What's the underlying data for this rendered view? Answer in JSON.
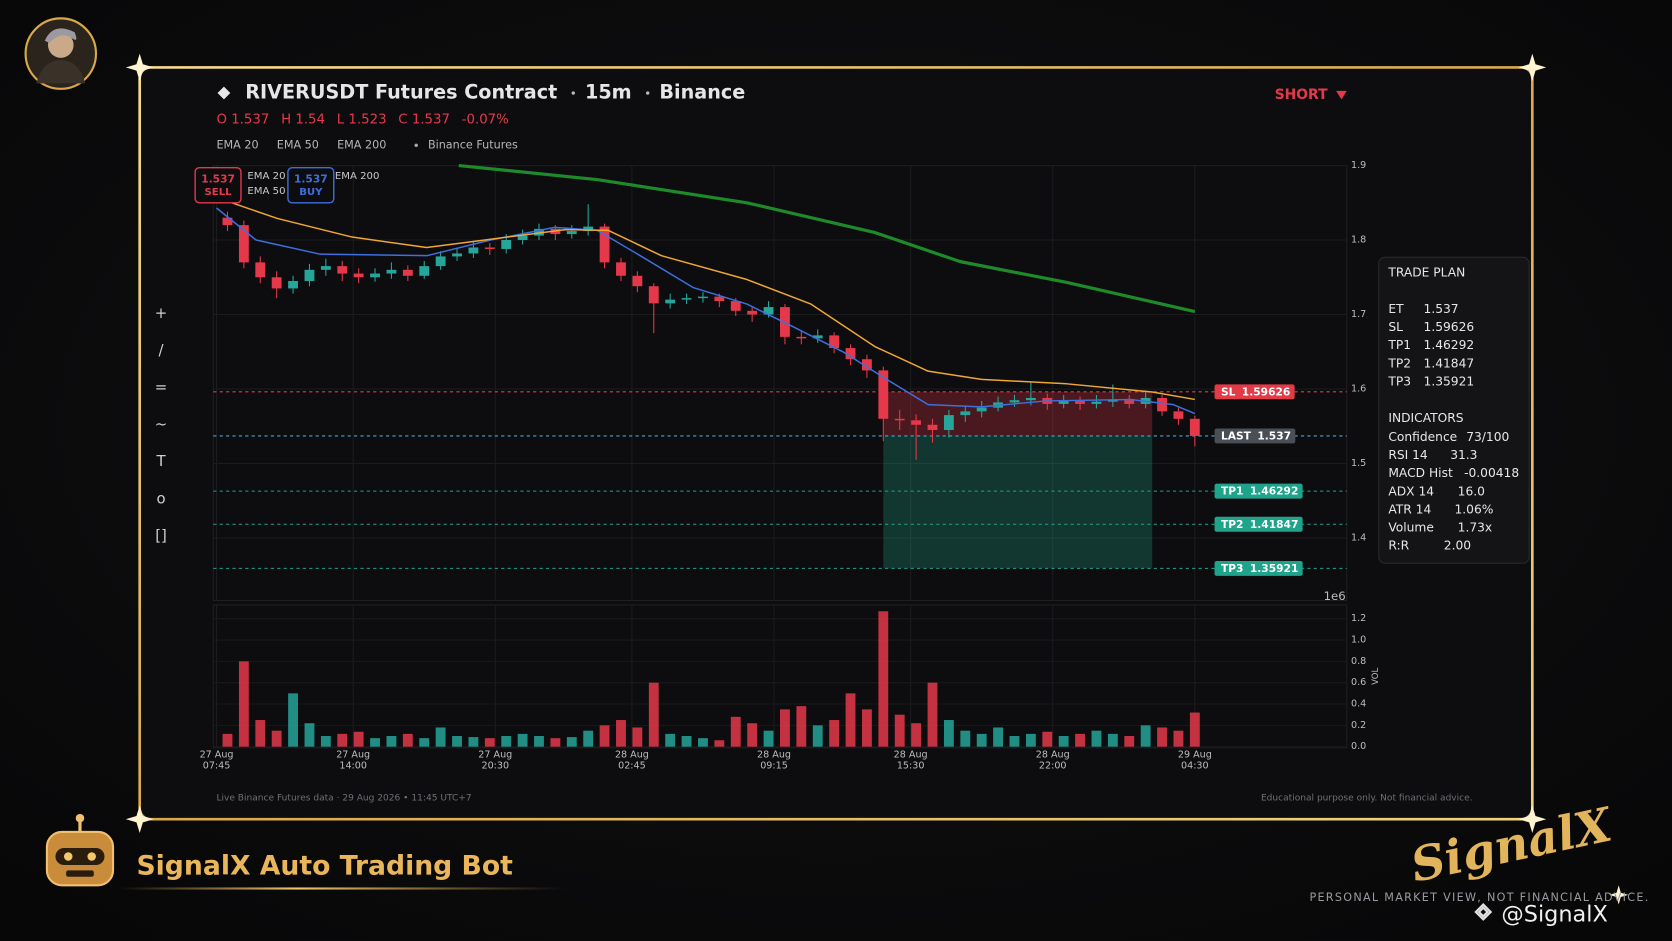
{
  "chart_data": {
    "type": "candlestick",
    "title": "RIVERUSDT Futures Contract",
    "interval": "15m",
    "exchange": "Binance",
    "side": "SHORT",
    "ohlc": [
      {
        "name": "O",
        "value": 1.537
      },
      {
        "name": "H",
        "value": 1.54
      },
      {
        "name": "L",
        "value": 1.523
      },
      {
        "name": "C",
        "value": 1.537
      }
    ],
    "change": {
      "value": -0.07,
      "label": "-0.07%"
    },
    "source": "Binance Futures",
    "buttons": [
      {
        "price": "1.537",
        "label": "SELL",
        "color": "#e5394b"
      },
      {
        "price": "1.537",
        "label": "BUY",
        "color": "#3d6fe0"
      }
    ],
    "toolbar": [
      "+",
      "/",
      "=",
      "~",
      "T",
      "o",
      "[]"
    ],
    "offset_label": "1e6",
    "up_color": "#26a69a",
    "down_color": "#e5394b",
    "grid": true,
    "xlim": [
      -0.15,
      51.7
    ],
    "xticks": [
      {
        "value": 0,
        "label": [
          "27 Aug",
          "07:45"
        ]
      },
      {
        "value": 6.25,
        "label": [
          "27 Aug",
          "14:00"
        ]
      },
      {
        "value": 12.75,
        "label": [
          "27 Aug",
          "20:30"
        ]
      },
      {
        "value": 19,
        "label": [
          "28 Aug",
          "02:45"
        ]
      },
      {
        "value": 25.5,
        "label": [
          "28 Aug",
          "09:15"
        ]
      },
      {
        "value": 31.75,
        "label": [
          "28 Aug",
          "15:30"
        ]
      },
      {
        "value": 38.25,
        "label": [
          "28 Aug",
          "22:00"
        ]
      },
      {
        "value": 44.75,
        "label": [
          "29 Aug",
          "04:30"
        ]
      }
    ],
    "ylim": [
      1.316,
      1.9
    ],
    "yticks": [
      1.4,
      1.5,
      1.6,
      1.7,
      1.8,
      1.9
    ],
    "x": [
      0.5,
      1.25,
      2,
      2.75,
      3.5,
      4.25,
      5,
      5.75,
      6.5,
      7.25,
      8,
      8.75,
      9.5,
      10.25,
      11,
      11.75,
      12.5,
      13.25,
      14,
      14.75,
      15.5,
      16.25,
      17,
      17.75,
      18.5,
      19.25,
      20,
      20.75,
      21.5,
      22.25,
      23,
      23.75,
      24.5,
      25.25,
      26,
      26.75,
      27.5,
      28.25,
      29,
      29.75,
      30.5,
      31.25,
      32,
      32.75,
      33.5,
      34.25,
      35,
      35.75,
      36.5,
      37.25,
      38,
      38.75,
      39.5,
      40.25,
      41,
      41.75,
      42.5,
      43.25,
      44,
      44.75
    ],
    "candles": [
      [
        1.83,
        1.838,
        1.812,
        1.82
      ],
      [
        1.82,
        1.826,
        1.762,
        1.77
      ],
      [
        1.77,
        1.778,
        1.742,
        1.75
      ],
      [
        1.75,
        1.758,
        1.722,
        1.735
      ],
      [
        1.735,
        1.752,
        1.728,
        1.745
      ],
      [
        1.745,
        1.768,
        1.738,
        1.76
      ],
      [
        1.76,
        1.775,
        1.752,
        1.765
      ],
      [
        1.765,
        1.772,
        1.745,
        1.755
      ],
      [
        1.755,
        1.762,
        1.742,
        1.75
      ],
      [
        1.75,
        1.762,
        1.744,
        1.755
      ],
      [
        1.755,
        1.77,
        1.748,
        1.76
      ],
      [
        1.76,
        1.766,
        1.745,
        1.752
      ],
      [
        1.752,
        1.772,
        1.748,
        1.765
      ],
      [
        1.765,
        1.785,
        1.76,
        1.778
      ],
      [
        1.778,
        1.79,
        1.772,
        1.782
      ],
      [
        1.782,
        1.798,
        1.776,
        1.79
      ],
      [
        1.79,
        1.796,
        1.78,
        1.788
      ],
      [
        1.788,
        1.808,
        1.782,
        1.8
      ],
      [
        1.8,
        1.814,
        1.794,
        1.806
      ],
      [
        1.806,
        1.822,
        1.8,
        1.815
      ],
      [
        1.815,
        1.82,
        1.8,
        1.808
      ],
      [
        1.808,
        1.82,
        1.802,
        1.812
      ],
      [
        1.812,
        1.848,
        1.806,
        1.818
      ],
      [
        1.818,
        1.822,
        1.762,
        1.77
      ],
      [
        1.77,
        1.776,
        1.745,
        1.752
      ],
      [
        1.752,
        1.758,
        1.73,
        1.738
      ],
      [
        1.738,
        1.742,
        1.675,
        1.715
      ],
      [
        1.715,
        1.728,
        1.708,
        1.72
      ],
      [
        1.72,
        1.728,
        1.714,
        1.722
      ],
      [
        1.722,
        1.73,
        1.716,
        1.724
      ],
      [
        1.724,
        1.728,
        1.71,
        1.718
      ],
      [
        1.718,
        1.722,
        1.698,
        1.705
      ],
      [
        1.705,
        1.71,
        1.69,
        1.7
      ],
      [
        1.7,
        1.718,
        1.696,
        1.71
      ],
      [
        1.71,
        1.714,
        1.66,
        1.67
      ],
      [
        1.67,
        1.678,
        1.66,
        1.668
      ],
      [
        1.668,
        1.68,
        1.662,
        1.672
      ],
      [
        1.672,
        1.676,
        1.648,
        1.655
      ],
      [
        1.655,
        1.66,
        1.632,
        1.64
      ],
      [
        1.64,
        1.646,
        1.615,
        1.625
      ],
      [
        1.625,
        1.63,
        1.53,
        1.56
      ],
      [
        1.56,
        1.572,
        1.545,
        1.558
      ],
      [
        1.558,
        1.566,
        1.505,
        1.552
      ],
      [
        1.552,
        1.56,
        1.528,
        1.545
      ],
      [
        1.545,
        1.572,
        1.535,
        1.565
      ],
      [
        1.565,
        1.578,
        1.556,
        1.57
      ],
      [
        1.57,
        1.584,
        1.562,
        1.575
      ],
      [
        1.575,
        1.59,
        1.57,
        1.582
      ],
      [
        1.582,
        1.592,
        1.576,
        1.585
      ],
      [
        1.585,
        1.61,
        1.578,
        1.588
      ],
      [
        1.588,
        1.594,
        1.572,
        1.58
      ],
      [
        1.58,
        1.592,
        1.574,
        1.584
      ],
      [
        1.584,
        1.59,
        1.572,
        1.58
      ],
      [
        1.58,
        1.592,
        1.574,
        1.583
      ],
      [
        1.583,
        1.606,
        1.576,
        1.585
      ],
      [
        1.585,
        1.592,
        1.574,
        1.58
      ],
      [
        1.58,
        1.598,
        1.574,
        1.588
      ],
      [
        1.588,
        1.592,
        1.564,
        1.57
      ],
      [
        1.57,
        1.575,
        1.552,
        1.56
      ],
      [
        1.56,
        1.564,
        1.523,
        1.537
      ]
    ],
    "series": [
      {
        "name": "EMA 20",
        "color": "#3d6fe0",
        "x": [
          0,
          1.81,
          4.74,
          9.62,
          12.54,
          15.47,
          17.42,
          19.38,
          21.82,
          24.26,
          26.21,
          28.65,
          30.6,
          32.55,
          34.99,
          37.92,
          41.82,
          43.77,
          44.75
        ],
        "values": [
          1.843,
          1.8,
          1.781,
          1.779,
          1.8,
          1.817,
          1.813,
          1.779,
          1.736,
          1.714,
          1.686,
          1.65,
          1.614,
          1.579,
          1.576,
          1.584,
          1.586,
          1.579,
          1.567
        ]
      },
      {
        "name": "EMA 50",
        "color": "#f0a732",
        "x": [
          0,
          2.78,
          6.2,
          9.61,
          12.54,
          15.96,
          17.91,
          20.35,
          24.26,
          27.19,
          30.11,
          32.55,
          34.99,
          38.89,
          42.8,
          44.75
        ],
        "values": [
          1.857,
          1.829,
          1.804,
          1.79,
          1.801,
          1.814,
          1.813,
          1.779,
          1.747,
          1.714,
          1.657,
          1.624,
          1.613,
          1.607,
          1.596,
          1.586
        ]
      },
      {
        "name": "EMA 200",
        "color": "#1f8a2a",
        "x": [
          11.08,
          17.44,
          24.26,
          30.12,
          34.02,
          38.9,
          44.75
        ],
        "values": [
          1.9,
          1.881,
          1.85,
          1.81,
          1.771,
          1.743,
          1.704
        ]
      }
    ],
    "levels": [
      {
        "name": "SL",
        "value": 1.59626,
        "color": "#e23a46",
        "line": "#e5394b"
      },
      {
        "name": "LAST",
        "value": 1.537,
        "color": "#4a4f57",
        "line": "#3fa9d6"
      },
      {
        "name": "TP1",
        "value": 1.46292,
        "color": "#1fa38a",
        "line": "#1fa38a"
      },
      {
        "name": "TP2",
        "value": 1.41847,
        "color": "#1fa38a",
        "line": "#1fa38a"
      },
      {
        "name": "TP3",
        "value": 1.35921,
        "color": "#1fa38a",
        "line": "#1fa38a"
      }
    ],
    "trade_zone": {
      "x": [
        30.5,
        42.8
      ]
    },
    "volume": {
      "label": "VOL",
      "ylim": [
        0,
        1.33
      ],
      "yticks": [
        {
          "value": 0,
          "label": "0.0"
        },
        0.2,
        0.4,
        0.6,
        0.8,
        {
          "value": 1,
          "label": "1.0"
        },
        1.2
      ],
      "values": [
        0.12,
        0.8,
        0.25,
        0.15,
        0.5,
        0.22,
        0.1,
        0.12,
        0.14,
        0.08,
        0.1,
        0.12,
        0.08,
        0.18,
        0.1,
        0.09,
        0.08,
        0.1,
        0.12,
        0.1,
        0.08,
        0.09,
        0.15,
        0.2,
        0.25,
        0.18,
        0.6,
        0.12,
        0.1,
        0.08,
        0.06,
        0.28,
        0.22,
        0.15,
        0.35,
        0.38,
        0.2,
        0.25,
        0.5,
        0.35,
        1.27,
        0.3,
        0.22,
        0.6,
        0.25,
        0.15,
        0.12,
        0.18,
        0.1,
        0.12,
        0.14,
        0.1,
        0.12,
        0.15,
        0.12,
        0.1,
        0.2,
        0.18,
        0.15,
        0.32
      ]
    },
    "trade_plan": {
      "title": "TRADE PLAN",
      "rows": [
        [
          "ET",
          "1.537"
        ],
        [
          "SL",
          "1.59626"
        ],
        [
          "TP1",
          "1.46292"
        ],
        [
          "TP2",
          "1.41847"
        ],
        [
          "TP3",
          "1.35921"
        ]
      ],
      "indicators_title": "INDICATORS",
      "indicators": [
        [
          "Confidence",
          "73/100"
        ],
        [
          "RSI 14",
          "31.3"
        ],
        [
          "MACD Hist",
          "-0.00418"
        ],
        [
          "ADX 14",
          "16.0"
        ],
        [
          "ATR 14",
          "1.06%"
        ],
        [
          "Volume",
          "1.73x"
        ],
        [
          "R:R",
          "2.00"
        ]
      ]
    },
    "footer_left": "Live Binance Futures data  ·  29 Aug 2026 • 11:45 UTC+7",
    "footer_right": "Educational purpose only. Not financial advice."
  },
  "branding": {
    "bot_name": "SignalX Auto Trading Bot",
    "logo": "SignalX",
    "tagline": "PERSONAL MARKET VIEW, NOT FINANCIAL ADVICE.",
    "handle": "@SignalX"
  }
}
